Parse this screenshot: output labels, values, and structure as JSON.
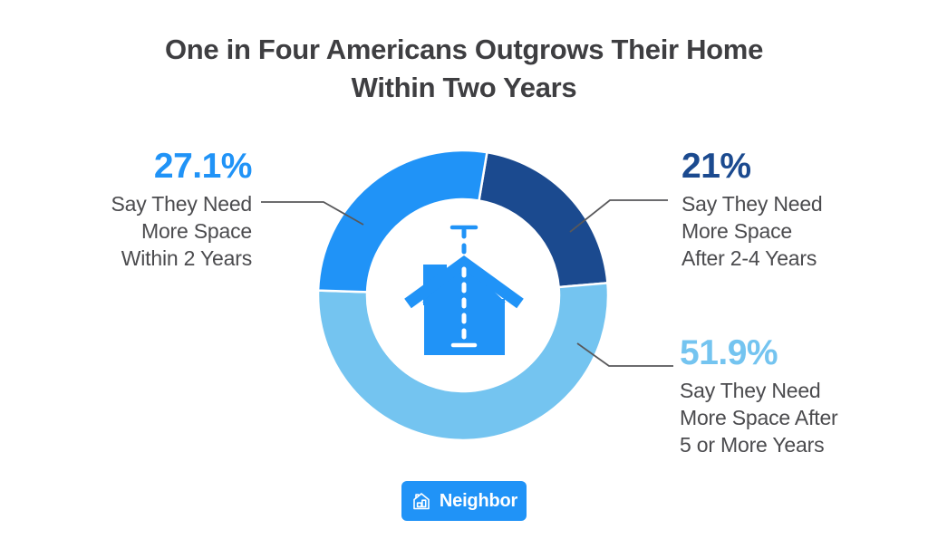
{
  "title": {
    "line1": "One in Four Americans Outgrows Their Home",
    "line2": "Within Two Years"
  },
  "callouts": [
    {
      "id": "within-2-years",
      "pct": "27.1%",
      "color": "#2093F7",
      "lines": [
        "Say They Need",
        "More Space",
        "Within 2 Years"
      ]
    },
    {
      "id": "after-2-4-years",
      "pct": "21%",
      "color": "#1B4A8F",
      "lines": [
        "Say They Need",
        "More Space",
        "After 2-4 Years"
      ]
    },
    {
      "id": "after-5-plus-years",
      "pct": "51.9%",
      "color": "#74C4F0",
      "lines": [
        "Say They Need",
        "More Space After",
        "5 or More Years"
      ]
    }
  ],
  "brand": {
    "name": "Neighbor"
  },
  "colors": {
    "bright_blue": "#2093F7",
    "navy_blue": "#1B4A8F",
    "light_blue": "#74C4F0",
    "title_text": "#3E3E41",
    "body_text": "#4B4B4E",
    "connector_gray": "#58585A",
    "background": "#FFFFFF"
  },
  "chart_data": {
    "type": "pie",
    "subtype": "donut",
    "title": "One in Four Americans Outgrows Their Home Within Two Years",
    "start_angle_deg": 9.5,
    "inner_radius_ratio": 0.66,
    "gap_stroke": "#FFFFFF",
    "legend_position": "callouts",
    "slices": [
      {
        "label": "Say They Need More Space After 2-4 Years",
        "pct": 21.0,
        "color": "#1B4A8F"
      },
      {
        "label": "Say They Need More Space After 5 or More Years",
        "pct": 51.9,
        "color": "#74C4F0"
      },
      {
        "label": "Say They Need More Space Within 2 Years",
        "pct": 27.1,
        "color": "#2093F7"
      }
    ],
    "center_icon": "house-with-height-measure"
  }
}
